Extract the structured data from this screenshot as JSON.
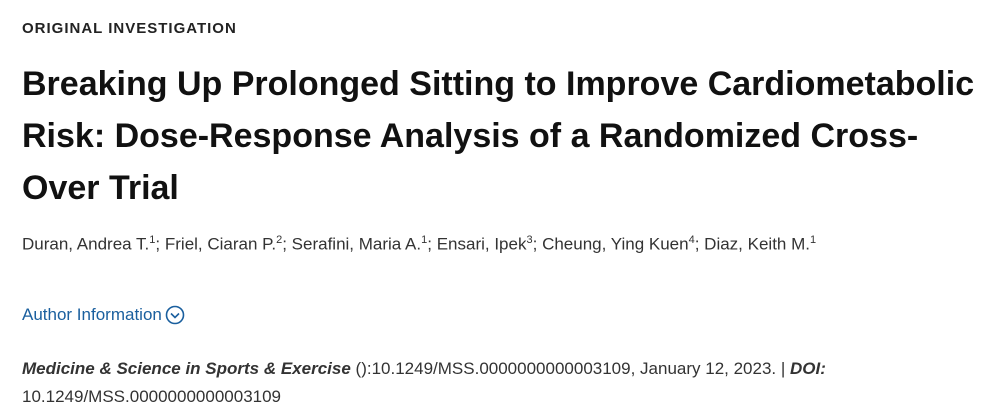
{
  "header": {
    "label": "ORIGINAL INVESTIGATION",
    "title": "Breaking Up Prolonged Sitting to Improve Cardiometabolic Risk: Dose-Response Analysis of a Randomized Cross-Over Trial"
  },
  "authors": {
    "separator": ";",
    "list": [
      {
        "name": "Duran, Andrea T.",
        "affiliation": "1"
      },
      {
        "name": "Friel, Ciaran P.",
        "affiliation": "2"
      },
      {
        "name": "Serafini, Maria A.",
        "affiliation": "1"
      },
      {
        "name": "Ensari, Ipek",
        "affiliation": "3"
      },
      {
        "name": "Cheung, Ying Kuen",
        "affiliation": "4"
      },
      {
        "name": "Diaz, Keith M.",
        "affiliation": "1"
      }
    ]
  },
  "author_info": "Author Information",
  "citation": {
    "journal": "Medicine & Science in Sports & Exercise",
    "details": "():10.1249/MSS.0000000000003109, January 12, 2023. |",
    "doi_label": "DOI:",
    "doi": "10.1249/MSS.0000000000003109"
  }
}
